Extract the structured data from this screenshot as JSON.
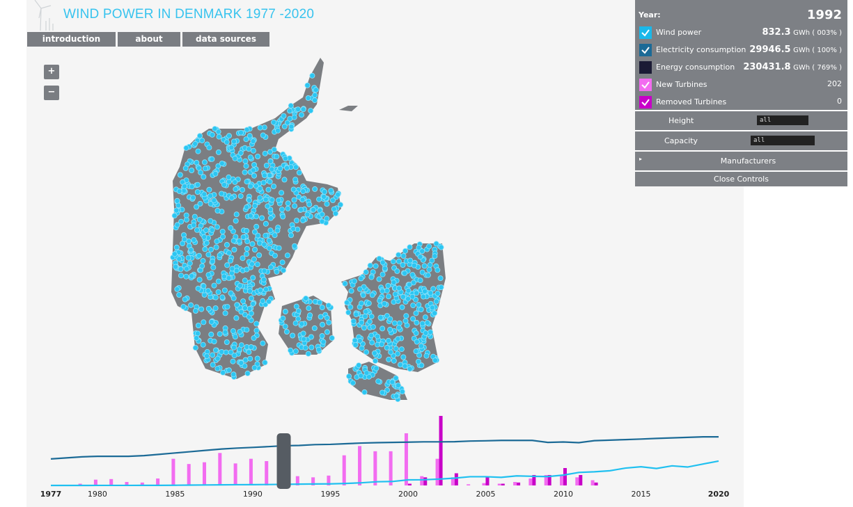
{
  "header": {
    "title": "WIND POWER IN DENMARK 1977 -2020"
  },
  "nav": [
    "introduction",
    "about",
    "data sources"
  ],
  "zoom": [
    "+",
    "−"
  ],
  "controls": {
    "year_label": "Year:",
    "year": 1992,
    "rows": [
      {
        "name": "Wind power",
        "value": 832.3,
        "unit": "GWh ( 003% )",
        "color": "#1ab8ea"
      },
      {
        "name": "Electricity consumption",
        "value": 29946.5,
        "unit": "GWh ( 100% )",
        "color": "#1b6a96"
      },
      {
        "name": "Energy consumption",
        "value": 230431.8,
        "unit": "GWh ( 769% )",
        "color": "#1b1b35"
      },
      {
        "name": "New Turbines",
        "value": 202,
        "color": "#f26cf0"
      },
      {
        "name": "Removed Turbines",
        "value": 0,
        "color": "#c800c8"
      }
    ],
    "height_label": "Height",
    "height_value": "all",
    "capacity_label": "Capacity",
    "capacity_value": "all",
    "manufacturers": "Manufacturers",
    "close": "Close Controls"
  },
  "chart_data": {
    "type": "bar-line",
    "x": [
      1977,
      1978,
      1979,
      1980,
      1981,
      1982,
      1983,
      1984,
      1985,
      1986,
      1987,
      1988,
      1989,
      1990,
      1991,
      1992,
      1993,
      1994,
      1995,
      1996,
      1997,
      1998,
      1999,
      2000,
      2001,
      2002,
      2003,
      2004,
      2005,
      2006,
      2007,
      2008,
      2009,
      2010,
      2011,
      2012,
      2013,
      2014,
      2015,
      2016,
      2017,
      2018,
      2019,
      2020
    ],
    "xlim": [
      1977,
      2020
    ],
    "xticks": [
      1977,
      1980,
      1985,
      1990,
      1995,
      2000,
      2005,
      2010,
      2015,
      2020
    ],
    "ylim": [
      0,
      52500
    ],
    "y2lim": [
      0,
      600
    ],
    "series": [
      {
        "type": "bar",
        "axis": "y2",
        "color": "#f26cf0",
        "values": [
          0,
          0,
          15,
          50,
          55,
          30,
          25,
          60,
          230,
          185,
          200,
          280,
          190,
          230,
          210,
          202,
          80,
          70,
          85,
          260,
          340,
          295,
          295,
          450,
          80,
          230,
          70,
          10,
          20,
          15,
          30,
          60,
          90,
          85,
          70,
          45,
          0,
          0,
          0,
          0,
          0,
          0,
          0,
          0
        ]
      },
      {
        "type": "bar",
        "axis": "y2",
        "color": "#c800c8",
        "values": [
          0,
          0,
          0,
          0,
          0,
          0,
          0,
          0,
          0,
          0,
          0,
          0,
          0,
          0,
          0,
          0,
          0,
          0,
          0,
          0,
          0,
          0,
          0,
          15,
          70,
          600,
          105,
          0,
          70,
          15,
          25,
          90,
          90,
          150,
          90,
          25,
          0,
          0,
          0,
          0,
          0,
          0,
          0,
          0
        ]
      },
      {
        "type": "line",
        "color": "#1b6a96",
        "values": [
          20000,
          20800,
          21600,
          22000,
          22000,
          22000,
          22500,
          23500,
          24500,
          25500,
          26500,
          27500,
          28200,
          28700,
          29300,
          29946.5,
          30200,
          30800,
          31000,
          31500,
          32000,
          32300,
          32500,
          32700,
          32900,
          32900,
          33000,
          33500,
          33700,
          34000,
          34000,
          34000,
          32500,
          32800,
          32300,
          33800,
          34200,
          34600,
          35000,
          35500,
          35900,
          36300,
          36700,
          36700
        ]
      },
      {
        "type": "line",
        "color": "#20c0f0",
        "values": [
          0,
          0,
          10,
          20,
          30,
          40,
          50,
          80,
          150,
          250,
          350,
          450,
          550,
          600,
          700,
          832.3,
          1000,
          1100,
          1200,
          1500,
          2000,
          2800,
          3000,
          4200,
          4300,
          4800,
          5500,
          6600,
          6600,
          6100,
          7200,
          6900,
          6700,
          7800,
          9800,
          10300,
          11100,
          13100,
          14100,
          12800,
          14800,
          13900,
          16200,
          18400
        ]
      }
    ]
  }
}
